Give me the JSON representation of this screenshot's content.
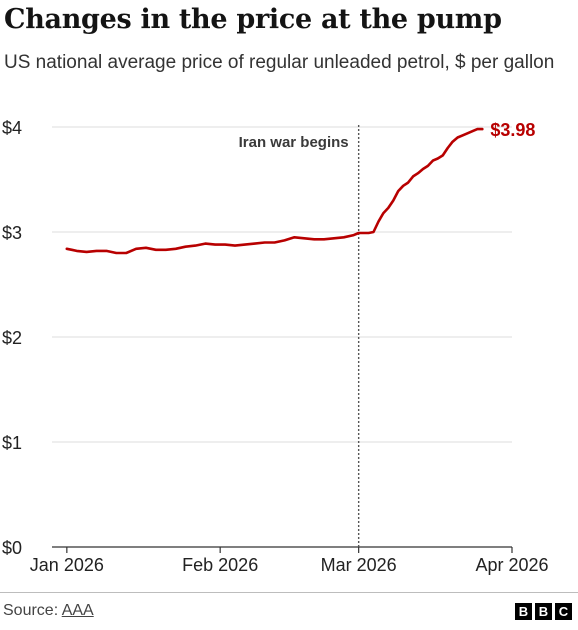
{
  "header": {
    "title": "Changes in the price at the pump",
    "subtitle": "US national average price of regular unleaded petrol, $ per gallon"
  },
  "footer": {
    "source_label": "Source:",
    "source_link": "AAA",
    "logo_letters": [
      "B",
      "B",
      "C"
    ]
  },
  "chart_data": {
    "type": "line",
    "title": "Changes in the price at the pump",
    "subtitle": "US national average price of regular unleaded petrol, $ per gallon",
    "xlabel": "",
    "ylabel": "",
    "ylim": [
      0,
      4
    ],
    "yticks": [
      0,
      1,
      2,
      3,
      4
    ],
    "ytick_labels": [
      "$0",
      "$1",
      "$2",
      "$3",
      "$4"
    ],
    "xlim": [
      "2025-12-29",
      "2026-04-01"
    ],
    "xticks": [
      "2026-01-01",
      "2026-02-01",
      "2026-03-01",
      "2026-04-01"
    ],
    "xtick_labels": [
      "Jan 2026",
      "Feb 2026",
      "Mar 2026",
      "Apr 2026"
    ],
    "grid": "horizontal",
    "line_color": "#b80000",
    "series": [
      {
        "points": [
          [
            "2026-01-01",
            2.84
          ],
          [
            "2026-01-02",
            2.83
          ],
          [
            "2026-01-03",
            2.82
          ],
          [
            "2026-01-05",
            2.81
          ],
          [
            "2026-01-07",
            2.82
          ],
          [
            "2026-01-09",
            2.82
          ],
          [
            "2026-01-11",
            2.8
          ],
          [
            "2026-01-13",
            2.8
          ],
          [
            "2026-01-15",
            2.84
          ],
          [
            "2026-01-17",
            2.85
          ],
          [
            "2026-01-19",
            2.83
          ],
          [
            "2026-01-21",
            2.83
          ],
          [
            "2026-01-23",
            2.84
          ],
          [
            "2026-01-25",
            2.86
          ],
          [
            "2026-01-27",
            2.87
          ],
          [
            "2026-01-29",
            2.89
          ],
          [
            "2026-01-31",
            2.88
          ],
          [
            "2026-02-02",
            2.88
          ],
          [
            "2026-02-04",
            2.87
          ],
          [
            "2026-02-06",
            2.88
          ],
          [
            "2026-02-08",
            2.89
          ],
          [
            "2026-02-10",
            2.9
          ],
          [
            "2026-02-12",
            2.9
          ],
          [
            "2026-02-14",
            2.92
          ],
          [
            "2026-02-16",
            2.95
          ],
          [
            "2026-02-18",
            2.94
          ],
          [
            "2026-02-20",
            2.93
          ],
          [
            "2026-02-22",
            2.93
          ],
          [
            "2026-02-24",
            2.94
          ],
          [
            "2026-02-26",
            2.95
          ],
          [
            "2026-02-28",
            2.97
          ],
          [
            "2026-03-01",
            2.99
          ],
          [
            "2026-03-02",
            2.99
          ],
          [
            "2026-03-03",
            2.99
          ],
          [
            "2026-03-04",
            3.0
          ],
          [
            "2026-03-05",
            3.1
          ],
          [
            "2026-03-06",
            3.18
          ],
          [
            "2026-03-07",
            3.23
          ],
          [
            "2026-03-08",
            3.3
          ],
          [
            "2026-03-09",
            3.39
          ],
          [
            "2026-03-10",
            3.44
          ],
          [
            "2026-03-11",
            3.47
          ],
          [
            "2026-03-12",
            3.53
          ],
          [
            "2026-03-13",
            3.56
          ],
          [
            "2026-03-14",
            3.6
          ],
          [
            "2026-03-15",
            3.63
          ],
          [
            "2026-03-16",
            3.68
          ],
          [
            "2026-03-17",
            3.7
          ],
          [
            "2026-03-18",
            3.73
          ],
          [
            "2026-03-19",
            3.8
          ],
          [
            "2026-03-20",
            3.86
          ],
          [
            "2026-03-21",
            3.9
          ],
          [
            "2026-03-22",
            3.92
          ],
          [
            "2026-03-23",
            3.94
          ],
          [
            "2026-03-24",
            3.96
          ],
          [
            "2026-03-25",
            3.98
          ],
          [
            "2026-03-26",
            3.98
          ]
        ]
      }
    ],
    "annotations": [
      {
        "type": "vline",
        "x": "2026-03-01",
        "label": "Iran war begins"
      },
      {
        "type": "end_label",
        "x": "2026-03-26",
        "label": "$3.98"
      }
    ]
  }
}
